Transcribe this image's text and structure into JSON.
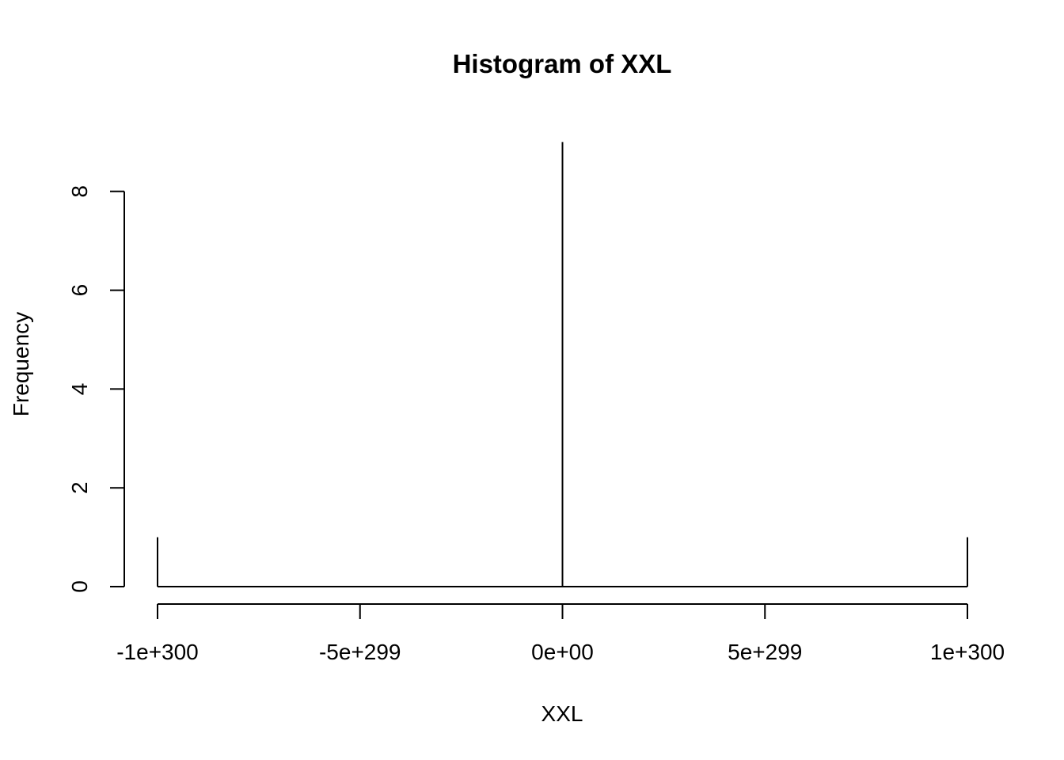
{
  "chart_data": {
    "type": "bar",
    "title": "Histogram of XXL",
    "xlabel": "XXL",
    "ylabel": "Frequency",
    "x_ticks": [
      {
        "value": -1e+300,
        "label": "-1e+300"
      },
      {
        "value": -5e+299,
        "label": "-5e+299"
      },
      {
        "value": 0,
        "label": "0e+00"
      },
      {
        "value": 5e+299,
        "label": "5e+299"
      },
      {
        "value": 1e+300,
        "label": "1e+300"
      }
    ],
    "y_ticks": [
      {
        "value": 0,
        "label": "0"
      },
      {
        "value": 2,
        "label": "2"
      },
      {
        "value": 4,
        "label": "4"
      },
      {
        "value": 6,
        "label": "6"
      },
      {
        "value": 8,
        "label": "8"
      }
    ],
    "xlim": [
      -1e+300,
      1e+300
    ],
    "ylim": [
      0,
      8
    ],
    "bins": [
      {
        "x": -1e+300,
        "count": 1
      },
      {
        "x": 0,
        "count": 9
      },
      {
        "x": 1e+300,
        "count": 1
      }
    ],
    "grid": false,
    "legend": "none",
    "colors": {
      "line": "#000000",
      "background": "#ffffff"
    }
  }
}
